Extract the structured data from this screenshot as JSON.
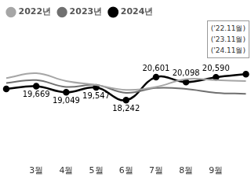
{
  "chart_data": {
    "type": "line",
    "categories": [
      null,
      "3월",
      "4월",
      "5월",
      "6월",
      "7월",
      "8월",
      "9월",
      null
    ],
    "series": [
      {
        "name": "2022년",
        "color": "#a6a6a6",
        "marker": "none",
        "values": [
          20500,
          21000,
          20200,
          19800,
          19300,
          19600,
          20400,
          20300,
          20200
        ]
      },
      {
        "name": "2023년",
        "color": "#707070",
        "marker": "none",
        "values": [
          20000,
          20300,
          19600,
          19800,
          19000,
          19500,
          19400,
          19000,
          18900
        ]
      },
      {
        "name": "2024년",
        "color": "#000000",
        "marker": "circle",
        "data_labels": true,
        "values": [
          19400,
          19669,
          19049,
          19547,
          18242,
          20601,
          20098,
          20590,
          20900
        ],
        "value_labels": [
          null,
          "19,669",
          "19,049",
          "19,547",
          "18,242",
          "20,601",
          "20,098",
          "20,590",
          null
        ]
      }
    ],
    "ylim": [
      12000,
      26000
    ],
    "grid": false,
    "legend": "top",
    "tick_labels": "x",
    "annotations": [
      "('22.11월)",
      "('23.11월)",
      "('24.11월)"
    ]
  }
}
